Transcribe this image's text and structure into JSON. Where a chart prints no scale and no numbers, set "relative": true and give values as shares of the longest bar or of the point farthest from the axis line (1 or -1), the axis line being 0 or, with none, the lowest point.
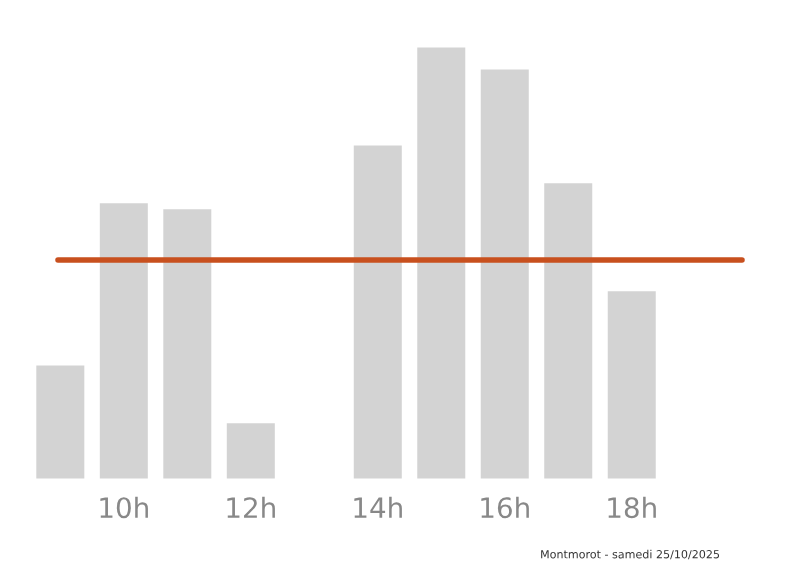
{
  "chart_data": {
    "type": "bar",
    "relative": true,
    "categories": [
      null,
      "10h",
      null,
      "12h",
      null,
      "14h",
      null,
      "16h",
      null,
      "18h",
      null
    ],
    "values": [
      0.267,
      0.641,
      0.627,
      0.134,
      null,
      0.774,
      1,
      0.949,
      0.687,
      0.438,
      null
    ],
    "color": "#d3d3d3",
    "ref_lines": [
      {
        "axis": "y",
        "value": 0.507,
        "color": "#c8501e"
      }
    ],
    "annotations": [
      "Montmorot - samedi 25/10/2025"
    ],
    "grid": false,
    "legend": false
  }
}
